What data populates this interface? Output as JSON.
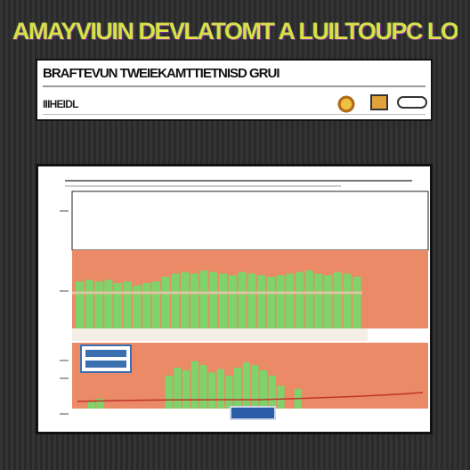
{
  "title": "AMAYVIUIN DEVLATOMT A LUILTOUPC LOASBS",
  "banner": {
    "line1": "BRAFTEVUN TWEIEKAMTTIETNISD GRUI",
    "line2": "IIIHEIDL"
  },
  "colors": {
    "background": "#2b2b2b",
    "title": "#d8e04a",
    "bar_green": "#7ed36a",
    "band_orange": "#ea8a66",
    "baseline": "#c0342a",
    "accent_blue": "#2a5fa8"
  },
  "icons": {
    "banner_icon_a": "decorative-stamp-icon",
    "banner_icon_b": "box-icon",
    "banner_icon_c": "logo-icon"
  },
  "chart_data": {
    "type": "bar",
    "panels": [
      {
        "values": [
          0.6,
          0.62,
          0.6,
          0.62,
          0.58,
          0.6,
          0.55,
          0.58,
          0.6,
          0.66,
          0.7,
          0.72,
          0.7,
          0.74,
          0.72,
          0.7,
          0.68,
          0.72,
          0.7,
          0.68,
          0.66,
          0.68,
          0.7,
          0.72,
          0.74,
          0.7,
          0.68,
          0.72,
          0.7,
          0.66
        ]
      },
      {
        "values": [
          0,
          0.1,
          0.15,
          0,
          0,
          0,
          0,
          0,
          0,
          0,
          0.5,
          0.62,
          0.58,
          0.72,
          0.66,
          0.55,
          0.6,
          0.5,
          0.62,
          0.7,
          0.66,
          0.58,
          0.5,
          0.35,
          0,
          0.3,
          0,
          0,
          0,
          0
        ]
      }
    ],
    "grid": false
  }
}
